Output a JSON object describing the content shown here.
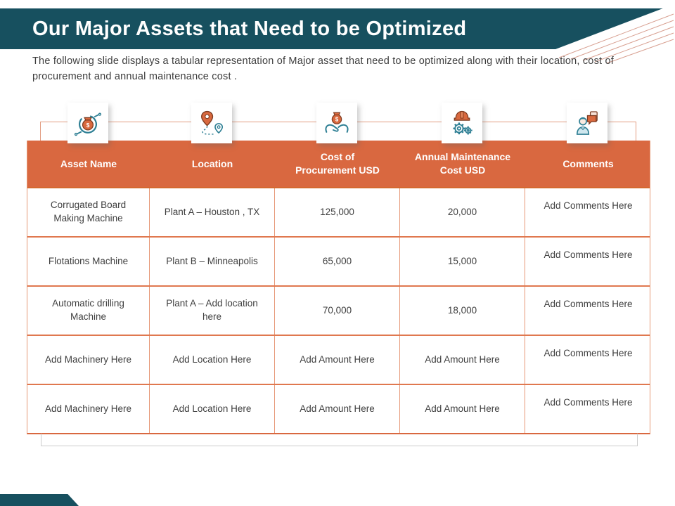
{
  "slide": {
    "title": "Our Major Assets that Need to be Optimized",
    "subtitle": "The following slide displays a tabular representation of Major asset that need to be optimized along with their location, cost of\nprocurement and annual maintenance cost .",
    "colors": {
      "teal": "#17505f",
      "orange_header": "#d96840",
      "grid_line_salmon": "#e69877",
      "row_line_orange": "#e0784f",
      "cell_text": "#3f3f3f",
      "bracket_gray": "#cbcbcb",
      "corner_line_salmon": "#d8a091"
    },
    "table": {
      "columns": [
        {
          "label": "Asset Name",
          "icon": "money-cycle-icon"
        },
        {
          "label": "Location",
          "icon": "location-pins-icon"
        },
        {
          "label": "Cost of\nProcurement USD",
          "icon": "hands-money-icon"
        },
        {
          "label": "Annual Maintenance\nCost USD",
          "icon": "helmet-gears-icon"
        },
        {
          "label": "Comments",
          "icon": "person-chat-icon"
        }
      ],
      "rows": [
        [
          "Corrugated Board Making Machine",
          "Plant A – Houston , TX",
          "125,000",
          "20,000",
          "Add Comments Here"
        ],
        [
          "Flotations Machine",
          "Plant B – Minneapolis",
          "65,000",
          "15,000",
          "Add Comments Here"
        ],
        [
          "Automatic drilling Machine",
          "Plant A – Add location here",
          "70,000",
          "18,000",
          "Add Comments Here"
        ],
        [
          "Add Machinery Here",
          "Add Location Here",
          "Add Amount Here",
          "Add Amount Here",
          "Add Comments Here"
        ],
        [
          "Add Machinery Here",
          "Add Location Here",
          "Add Amount Here",
          "Add Amount Here",
          "Add Comments Here"
        ]
      ]
    }
  }
}
